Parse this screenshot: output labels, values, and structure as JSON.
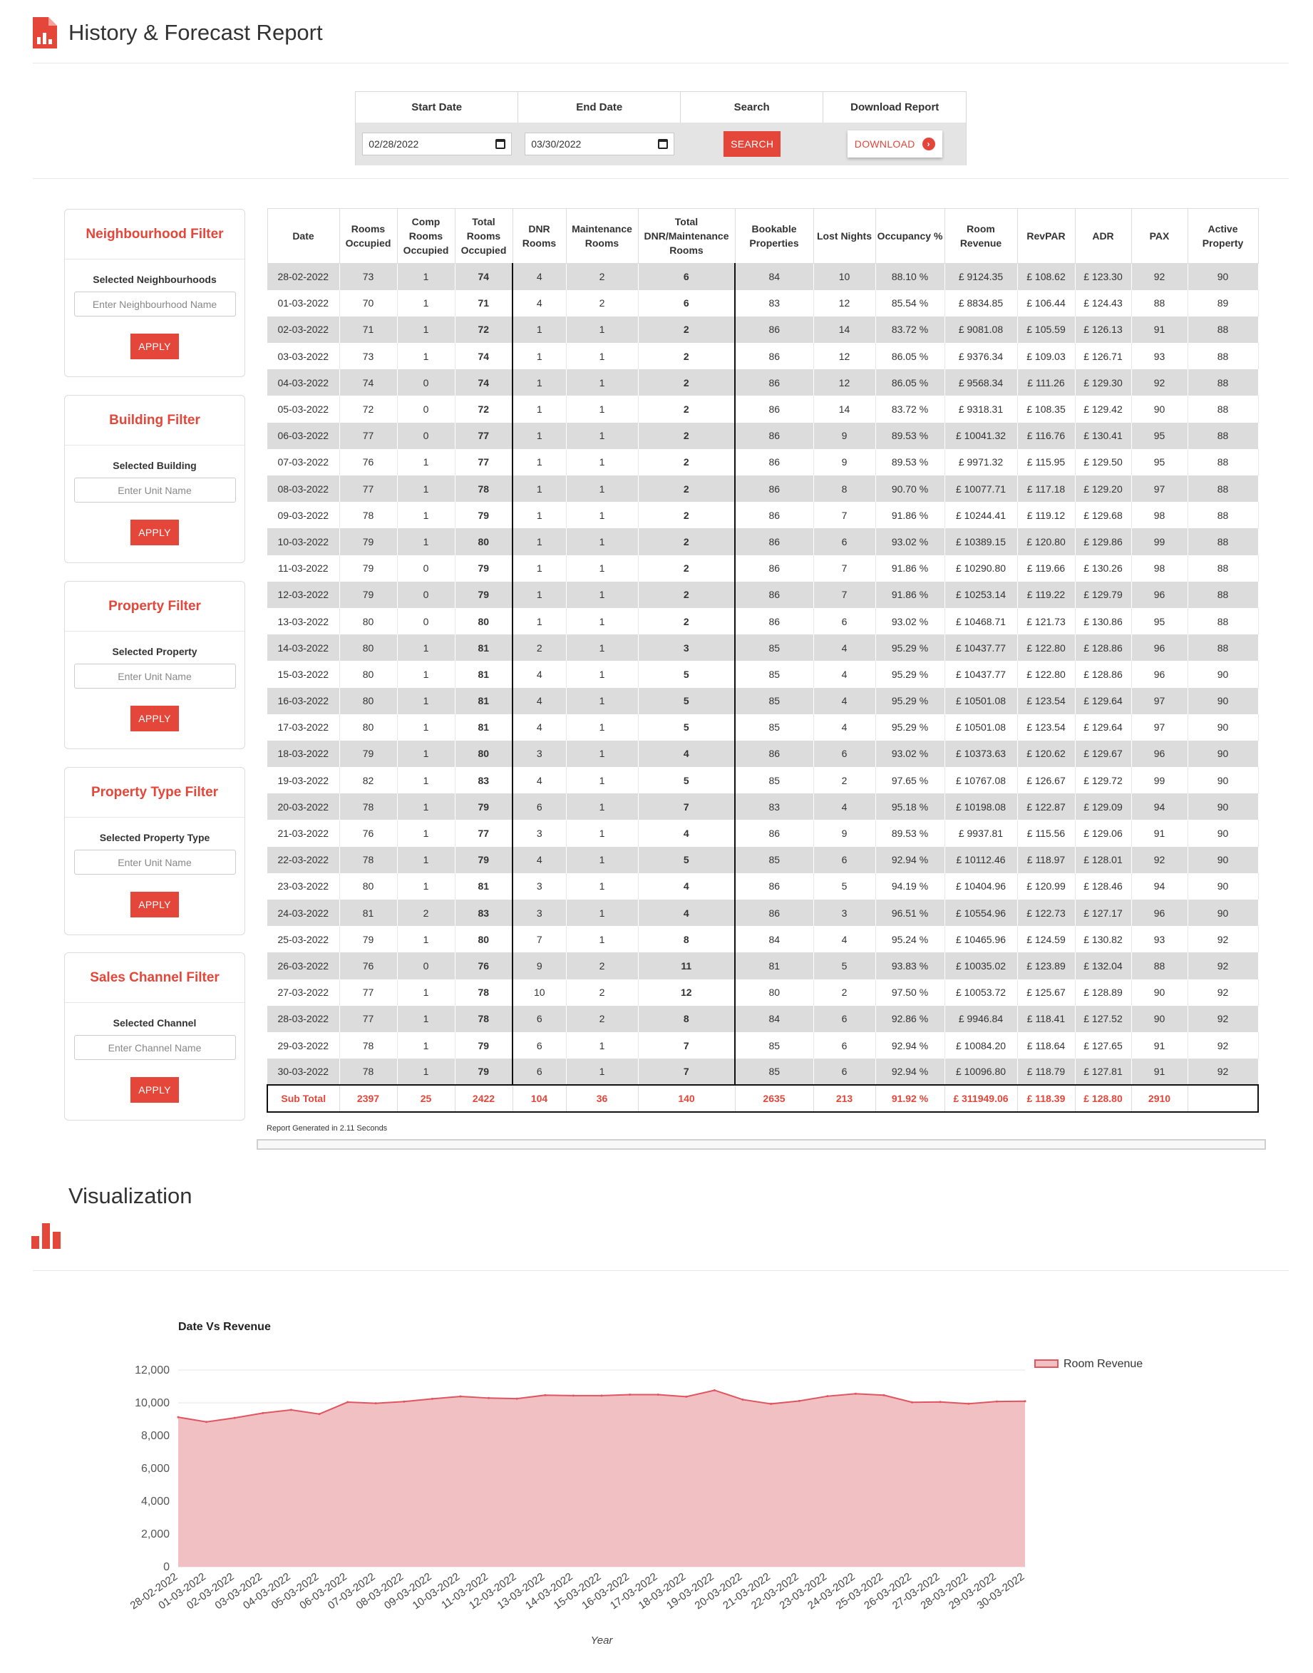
{
  "header": {
    "title": "History & Forecast Report"
  },
  "search": {
    "start_label": "Start Date",
    "end_label": "End Date",
    "search_label": "Search",
    "download_label": "Download Report",
    "start_value": "02/28/2022",
    "end_value": "03/30/2022",
    "search_button": "SEARCH",
    "download_button": "DOWNLOAD"
  },
  "filters": [
    {
      "title": "Neighbourhood Filter",
      "label": "Selected Neighbourhoods",
      "placeholder": "Enter Neighbourhood Name",
      "button": "APPLY"
    },
    {
      "title": "Building Filter",
      "label": "Selected Building",
      "placeholder": "Enter Unit Name",
      "button": "APPLY"
    },
    {
      "title": "Property Filter",
      "label": "Selected Property",
      "placeholder": "Enter Unit Name",
      "button": "APPLY"
    },
    {
      "title": "Property Type Filter",
      "label": "Selected Property Type",
      "placeholder": "Enter Unit Name",
      "button": "APPLY"
    },
    {
      "title": "Sales Channel Filter",
      "label": "Selected Channel",
      "placeholder": "Enter Channel Name",
      "button": "APPLY"
    }
  ],
  "table": {
    "headers": [
      "Date",
      "Rooms Occupied",
      "Comp Rooms Occupied",
      "Total Rooms Occupied",
      "DNR Rooms",
      "Maintenance Rooms",
      "Total DNR/Maintenance Rooms",
      "Bookable Properties",
      "Lost Nights",
      "Occupancy %",
      "Room Revenue",
      "RevPAR",
      "ADR",
      "PAX",
      "Active Property"
    ],
    "rows": [
      [
        "28-02-2022",
        "73",
        "1",
        "74",
        "4",
        "2",
        "6",
        "84",
        "10",
        "88.10 %",
        "£ 9124.35",
        "£ 108.62",
        "£ 123.30",
        "92",
        "90"
      ],
      [
        "01-03-2022",
        "70",
        "1",
        "71",
        "4",
        "2",
        "6",
        "83",
        "12",
        "85.54 %",
        "£ 8834.85",
        "£ 106.44",
        "£ 124.43",
        "88",
        "89"
      ],
      [
        "02-03-2022",
        "71",
        "1",
        "72",
        "1",
        "1",
        "2",
        "86",
        "14",
        "83.72 %",
        "£ 9081.08",
        "£ 105.59",
        "£ 126.13",
        "91",
        "88"
      ],
      [
        "03-03-2022",
        "73",
        "1",
        "74",
        "1",
        "1",
        "2",
        "86",
        "12",
        "86.05 %",
        "£ 9376.34",
        "£ 109.03",
        "£ 126.71",
        "93",
        "88"
      ],
      [
        "04-03-2022",
        "74",
        "0",
        "74",
        "1",
        "1",
        "2",
        "86",
        "12",
        "86.05 %",
        "£ 9568.34",
        "£ 111.26",
        "£ 129.30",
        "92",
        "88"
      ],
      [
        "05-03-2022",
        "72",
        "0",
        "72",
        "1",
        "1",
        "2",
        "86",
        "14",
        "83.72 %",
        "£ 9318.31",
        "£ 108.35",
        "£ 129.42",
        "90",
        "88"
      ],
      [
        "06-03-2022",
        "77",
        "0",
        "77",
        "1",
        "1",
        "2",
        "86",
        "9",
        "89.53 %",
        "£ 10041.32",
        "£ 116.76",
        "£ 130.41",
        "95",
        "88"
      ],
      [
        "07-03-2022",
        "76",
        "1",
        "77",
        "1",
        "1",
        "2",
        "86",
        "9",
        "89.53 %",
        "£ 9971.32",
        "£ 115.95",
        "£ 129.50",
        "95",
        "88"
      ],
      [
        "08-03-2022",
        "77",
        "1",
        "78",
        "1",
        "1",
        "2",
        "86",
        "8",
        "90.70 %",
        "£ 10077.71",
        "£ 117.18",
        "£ 129.20",
        "97",
        "88"
      ],
      [
        "09-03-2022",
        "78",
        "1",
        "79",
        "1",
        "1",
        "2",
        "86",
        "7",
        "91.86 %",
        "£ 10244.41",
        "£ 119.12",
        "£ 129.68",
        "98",
        "88"
      ],
      [
        "10-03-2022",
        "79",
        "1",
        "80",
        "1",
        "1",
        "2",
        "86",
        "6",
        "93.02 %",
        "£ 10389.15",
        "£ 120.80",
        "£ 129.86",
        "99",
        "88"
      ],
      [
        "11-03-2022",
        "79",
        "0",
        "79",
        "1",
        "1",
        "2",
        "86",
        "7",
        "91.86 %",
        "£ 10290.80",
        "£ 119.66",
        "£ 130.26",
        "98",
        "88"
      ],
      [
        "12-03-2022",
        "79",
        "0",
        "79",
        "1",
        "1",
        "2",
        "86",
        "7",
        "91.86 %",
        "£ 10253.14",
        "£ 119.22",
        "£ 129.79",
        "96",
        "88"
      ],
      [
        "13-03-2022",
        "80",
        "0",
        "80",
        "1",
        "1",
        "2",
        "86",
        "6",
        "93.02 %",
        "£ 10468.71",
        "£ 121.73",
        "£ 130.86",
        "95",
        "88"
      ],
      [
        "14-03-2022",
        "80",
        "1",
        "81",
        "2",
        "1",
        "3",
        "85",
        "4",
        "95.29 %",
        "£ 10437.77",
        "£ 122.80",
        "£ 128.86",
        "96",
        "88"
      ],
      [
        "15-03-2022",
        "80",
        "1",
        "81",
        "4",
        "1",
        "5",
        "85",
        "4",
        "95.29 %",
        "£ 10437.77",
        "£ 122.80",
        "£ 128.86",
        "96",
        "90"
      ],
      [
        "16-03-2022",
        "80",
        "1",
        "81",
        "4",
        "1",
        "5",
        "85",
        "4",
        "95.29 %",
        "£ 10501.08",
        "£ 123.54",
        "£ 129.64",
        "97",
        "90"
      ],
      [
        "17-03-2022",
        "80",
        "1",
        "81",
        "4",
        "1",
        "5",
        "85",
        "4",
        "95.29 %",
        "£ 10501.08",
        "£ 123.54",
        "£ 129.64",
        "97",
        "90"
      ],
      [
        "18-03-2022",
        "79",
        "1",
        "80",
        "3",
        "1",
        "4",
        "86",
        "6",
        "93.02 %",
        "£ 10373.63",
        "£ 120.62",
        "£ 129.67",
        "96",
        "90"
      ],
      [
        "19-03-2022",
        "82",
        "1",
        "83",
        "4",
        "1",
        "5",
        "85",
        "2",
        "97.65 %",
        "£ 10767.08",
        "£ 126.67",
        "£ 129.72",
        "99",
        "90"
      ],
      [
        "20-03-2022",
        "78",
        "1",
        "79",
        "6",
        "1",
        "7",
        "83",
        "4",
        "95.18 %",
        "£ 10198.08",
        "£ 122.87",
        "£ 129.09",
        "94",
        "90"
      ],
      [
        "21-03-2022",
        "76",
        "1",
        "77",
        "3",
        "1",
        "4",
        "86",
        "9",
        "89.53 %",
        "£ 9937.81",
        "£ 115.56",
        "£ 129.06",
        "91",
        "90"
      ],
      [
        "22-03-2022",
        "78",
        "1",
        "79",
        "4",
        "1",
        "5",
        "85",
        "6",
        "92.94 %",
        "£ 10112.46",
        "£ 118.97",
        "£ 128.01",
        "92",
        "90"
      ],
      [
        "23-03-2022",
        "80",
        "1",
        "81",
        "3",
        "1",
        "4",
        "86",
        "5",
        "94.19 %",
        "£ 10404.96",
        "£ 120.99",
        "£ 128.46",
        "94",
        "90"
      ],
      [
        "24-03-2022",
        "81",
        "2",
        "83",
        "3",
        "1",
        "4",
        "86",
        "3",
        "96.51 %",
        "£ 10554.96",
        "£ 122.73",
        "£ 127.17",
        "96",
        "90"
      ],
      [
        "25-03-2022",
        "79",
        "1",
        "80",
        "7",
        "1",
        "8",
        "84",
        "4",
        "95.24 %",
        "£ 10465.96",
        "£ 124.59",
        "£ 130.82",
        "93",
        "92"
      ],
      [
        "26-03-2022",
        "76",
        "0",
        "76",
        "9",
        "2",
        "11",
        "81",
        "5",
        "93.83 %",
        "£ 10035.02",
        "£ 123.89",
        "£ 132.04",
        "88",
        "92"
      ],
      [
        "27-03-2022",
        "77",
        "1",
        "78",
        "10",
        "2",
        "12",
        "80",
        "2",
        "97.50 %",
        "£ 10053.72",
        "£ 125.67",
        "£ 128.89",
        "90",
        "92"
      ],
      [
        "28-03-2022",
        "77",
        "1",
        "78",
        "6",
        "2",
        "8",
        "84",
        "6",
        "92.86 %",
        "£ 9946.84",
        "£ 118.41",
        "£ 127.52",
        "90",
        "92"
      ],
      [
        "29-03-2022",
        "78",
        "1",
        "79",
        "6",
        "1",
        "7",
        "85",
        "6",
        "92.94 %",
        "£ 10084.20",
        "£ 118.64",
        "£ 127.65",
        "91",
        "92"
      ],
      [
        "30-03-2022",
        "78",
        "1",
        "79",
        "6",
        "1",
        "7",
        "85",
        "6",
        "92.94 %",
        "£ 10096.80",
        "£ 118.79",
        "£ 127.81",
        "91",
        "92"
      ]
    ],
    "subtotal": [
      "Sub Total",
      "2397",
      "25",
      "2422",
      "104",
      "36",
      "140",
      "2635",
      "213",
      "91.92 %",
      "£ 311949.06",
      "£ 118.39",
      "£ 128.80",
      "2910",
      ""
    ]
  },
  "report_note": "Report Generated in 2.11 Seconds",
  "visualization": {
    "title": "Visualization"
  },
  "colors": {
    "accent": "#e4463a",
    "area_fill": "#f0c0c3",
    "area_line": "#e05560"
  },
  "chart_data": {
    "type": "area",
    "title": "Date Vs Revenue",
    "xlabel": "Year",
    "ylabel": "",
    "ylim": [
      0,
      12000
    ],
    "yticks": [
      "0",
      "2,000",
      "4,000",
      "6,000",
      "8,000",
      "10,000",
      "12,000"
    ],
    "legend_position": "top-right",
    "grid": true,
    "x": [
      "28-02-2022",
      "01-03-2022",
      "02-03-2022",
      "03-03-2022",
      "04-03-2022",
      "05-03-2022",
      "06-03-2022",
      "07-03-2022",
      "08-03-2022",
      "09-03-2022",
      "10-03-2022",
      "11-03-2022",
      "12-03-2022",
      "13-03-2022",
      "14-03-2022",
      "15-03-2022",
      "16-03-2022",
      "17-03-2022",
      "18-03-2022",
      "19-03-2022",
      "20-03-2022",
      "21-03-2022",
      "22-03-2022",
      "23-03-2022",
      "24-03-2022",
      "25-03-2022",
      "26-03-2022",
      "27-03-2022",
      "28-03-2022",
      "29-03-2022",
      "30-03-2022"
    ],
    "series": [
      {
        "name": "Room Revenue",
        "values": [
          9124.35,
          8834.85,
          9081.08,
          9376.34,
          9568.34,
          9318.31,
          10041.32,
          9971.32,
          10077.71,
          10244.41,
          10389.15,
          10290.8,
          10253.14,
          10468.71,
          10437.77,
          10437.77,
          10501.08,
          10501.08,
          10373.63,
          10767.08,
          10198.08,
          9937.81,
          10112.46,
          10404.96,
          10554.96,
          10465.96,
          10035.02,
          10053.72,
          9946.84,
          10084.2,
          10096.8
        ]
      }
    ]
  }
}
